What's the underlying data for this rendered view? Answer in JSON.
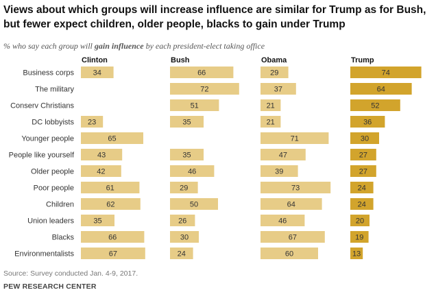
{
  "title": "Views about which groups will increase influence are similar for Trump as for Bush, but fewer expect children, older people, blacks to gain under Trump",
  "subtitle_pre": "% who say each group will ",
  "subtitle_em": "gain influence",
  "subtitle_post": " by each president-elect taking office",
  "source": "Source: Survey conducted Jan. 4-9, 2017.",
  "credit": "PEW RESEARCH CENTER",
  "colors": {
    "light": "#e7cc87",
    "trump": "#d2a42c",
    "text": "#333333"
  },
  "chart_data": {
    "type": "bar",
    "orientation": "horizontal",
    "categories": [
      "Business corps",
      "The military",
      "Conserv Christians",
      "DC lobbyists",
      "Younger people",
      "People like yourself",
      "Older people",
      "Poor people",
      "Children",
      "Union leaders",
      "Blacks",
      "Environmentalists"
    ],
    "series": [
      {
        "name": "Clinton",
        "values": [
          34,
          null,
          null,
          23,
          65,
          43,
          42,
          61,
          62,
          35,
          66,
          67
        ]
      },
      {
        "name": "Bush",
        "values": [
          66,
          72,
          51,
          35,
          null,
          35,
          46,
          29,
          50,
          26,
          30,
          24
        ]
      },
      {
        "name": "Obama",
        "values": [
          29,
          37,
          21,
          21,
          71,
          47,
          39,
          73,
          64,
          46,
          67,
          60
        ]
      },
      {
        "name": "Trump",
        "values": [
          74,
          64,
          52,
          36,
          30,
          27,
          27,
          24,
          24,
          20,
          19,
          13
        ]
      }
    ],
    "xlim": [
      0,
      80
    ]
  }
}
